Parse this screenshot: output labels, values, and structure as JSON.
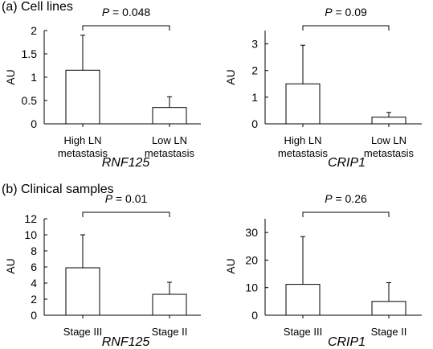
{
  "sections": [
    {
      "title": "(a) Cell lines"
    },
    {
      "title": "(b) Clinical samples"
    }
  ],
  "chart_data": [
    {
      "type": "bar",
      "panel": "a-left",
      "categories": [
        [
          "High LN",
          "metastasis"
        ],
        [
          "Low LN",
          "metastasis"
        ]
      ],
      "values": [
        1.15,
        0.35
      ],
      "error_upper": [
        1.9,
        0.58
      ],
      "ylabel": "AU",
      "xlabel": "RNF125",
      "ylim": [
        0,
        2
      ],
      "yticks": [
        0,
        0.5,
        1,
        1.5,
        2
      ],
      "ytick_labels": [
        "0",
        "0.5",
        "1",
        "1.5",
        "2"
      ],
      "significance": {
        "prefix": "P",
        "text": " = 0.048"
      }
    },
    {
      "type": "bar",
      "panel": "a-right",
      "categories": [
        [
          "High LN",
          "metastasis"
        ],
        [
          "Low LN",
          "metastasis"
        ]
      ],
      "values": [
        1.5,
        0.25
      ],
      "error_upper": [
        2.95,
        0.43
      ],
      "ylabel": "AU",
      "xlabel": "CRIP1",
      "ylim": [
        0,
        3.5
      ],
      "yticks": [
        0,
        1,
        2,
        3
      ],
      "ytick_labels": [
        "0",
        "1",
        "2",
        "3"
      ],
      "significance": {
        "prefix": "P",
        "text": " = 0.09"
      }
    },
    {
      "type": "bar",
      "panel": "b-left",
      "categories": [
        [
          "Stage III"
        ],
        [
          "Stage II"
        ]
      ],
      "values": [
        5.9,
        2.6
      ],
      "error_upper": [
        10,
        4.1
      ],
      "ylabel": "AU",
      "xlabel": "RNF125",
      "ylim": [
        0,
        12
      ],
      "yticks": [
        0,
        2,
        4,
        6,
        8,
        10,
        12
      ],
      "ytick_labels": [
        "0",
        "2",
        "4",
        "6",
        "8",
        "10",
        "12"
      ],
      "significance": {
        "prefix": "P",
        "text": " = 0.01"
      }
    },
    {
      "type": "bar",
      "panel": "b-right",
      "categories": [
        [
          "Stage III"
        ],
        [
          "Stage II"
        ]
      ],
      "values": [
        11.2,
        5
      ],
      "error_upper": [
        28.5,
        11.8
      ],
      "ylabel": "AU",
      "xlabel": "CRIP1",
      "ylim": [
        0,
        35
      ],
      "yticks": [
        0,
        10,
        20,
        30
      ],
      "ytick_labels": [
        "0",
        "10",
        "20",
        "30"
      ],
      "significance": {
        "prefix": "P",
        "text": " = 0.26"
      }
    }
  ]
}
